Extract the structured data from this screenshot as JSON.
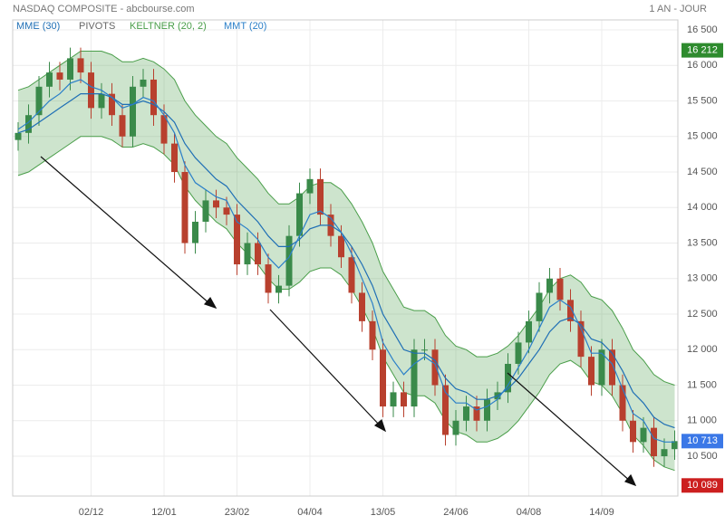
{
  "chart_data": {
    "type": "candlestick",
    "title": "NASDAQ COMPOSITE - abcbourse.com",
    "period": "1 AN - JOUR",
    "pivots_label": "PIVOTS",
    "grid": true,
    "ylim": [
      9940,
      16640
    ],
    "yticks": [
      {
        "value": 10500,
        "label": "10 500"
      },
      {
        "value": 11000,
        "label": "11 000"
      },
      {
        "value": 11500,
        "label": "11 500"
      },
      {
        "value": 12000,
        "label": "12 000"
      },
      {
        "value": 12500,
        "label": "12 500"
      },
      {
        "value": 13000,
        "label": "13 000"
      },
      {
        "value": 13500,
        "label": "13 500"
      },
      {
        "value": 14000,
        "label": "14 000"
      },
      {
        "value": 14500,
        "label": "14 500"
      },
      {
        "value": 15000,
        "label": "15 000"
      },
      {
        "value": 15500,
        "label": "15 500"
      },
      {
        "value": 16000,
        "label": "16 000"
      },
      {
        "value": 16500,
        "label": "16 500"
      }
    ],
    "badges": [
      {
        "value": 16212,
        "label": "16 212",
        "color": "#2e8b2e"
      },
      {
        "value": 10713,
        "label": "10 713",
        "color": "#3b78e7"
      },
      {
        "value": 10089,
        "label": "10 089",
        "color": "#cc1f1f"
      }
    ],
    "categories": [
      null,
      null,
      null,
      null,
      null,
      null,
      null,
      "02/12",
      null,
      null,
      null,
      null,
      null,
      null,
      "12/01",
      null,
      null,
      null,
      null,
      null,
      null,
      "23/02",
      null,
      null,
      null,
      null,
      null,
      null,
      "04/04",
      null,
      null,
      null,
      null,
      null,
      null,
      "13/05",
      null,
      null,
      null,
      null,
      null,
      null,
      "24/06",
      null,
      null,
      null,
      null,
      null,
      null,
      "04/08",
      null,
      null,
      null,
      null,
      null,
      null,
      "14/09",
      null,
      null,
      null,
      null,
      null,
      null,
      null
    ],
    "up_color": "#3a8a4a",
    "down_color": "#b8402e",
    "open": [
      14950,
      15050,
      15300,
      15700,
      15900,
      15800,
      16100,
      15900,
      15400,
      15600,
      15300,
      15000,
      15700,
      15800,
      15300,
      14900,
      14500,
      13500,
      13800,
      14100,
      14000,
      13900,
      13200,
      13500,
      13200,
      12800,
      12900,
      13600,
      14200,
      14400,
      13900,
      13600,
      13300,
      12800,
      12400,
      12000,
      11200,
      11400,
      11200,
      12000,
      12000,
      11500,
      10800,
      11000,
      11200,
      11000,
      11300,
      11400,
      11800,
      12100,
      12400,
      12800,
      13000,
      12700,
      12400,
      11900,
      11500,
      12000,
      11500,
      11000,
      10700,
      10900,
      10500,
      10600
    ],
    "high": [
      15200,
      15450,
      15850,
      16050,
      16050,
      16250,
      16250,
      16050,
      15750,
      15750,
      15450,
      15850,
      15950,
      15950,
      15450,
      15050,
      14650,
      13950,
      14250,
      14250,
      14150,
      14050,
      13650,
      13650,
      13350,
      13050,
      13750,
      14350,
      14550,
      14550,
      14050,
      13750,
      13450,
      12950,
      12550,
      12150,
      11550,
      11550,
      12150,
      12150,
      12150,
      11650,
      11150,
      11350,
      11350,
      11450,
      11550,
      11950,
      12250,
      12550,
      12950,
      13150,
      13150,
      12850,
      12550,
      12050,
      12150,
      12150,
      11650,
      11150,
      11050,
      11050,
      10750,
      10863
    ],
    "low": [
      14800,
      14900,
      15150,
      15550,
      15650,
      15650,
      15750,
      15250,
      15250,
      15150,
      14850,
      14850,
      15550,
      15150,
      14750,
      14350,
      13350,
      13350,
      13650,
      13850,
      13750,
      13050,
      13050,
      13050,
      12650,
      12650,
      12750,
      13450,
      14050,
      13750,
      13450,
      13150,
      12650,
      12250,
      11850,
      11050,
      11050,
      11050,
      11050,
      11850,
      11350,
      10650,
      10650,
      10850,
      10850,
      10850,
      11150,
      11250,
      11650,
      11950,
      12250,
      12650,
      12550,
      12250,
      11750,
      11350,
      11350,
      11350,
      10850,
      10550,
      10550,
      10350,
      10350,
      10450
    ],
    "close": [
      15050,
      15300,
      15700,
      15900,
      15800,
      16100,
      15900,
      15400,
      15600,
      15300,
      15000,
      15700,
      15800,
      15300,
      14900,
      14500,
      13500,
      13800,
      14100,
      14000,
      13900,
      13200,
      13500,
      13200,
      12800,
      12900,
      13600,
      14200,
      14400,
      13900,
      13600,
      13300,
      12800,
      12400,
      12000,
      11200,
      11400,
      11200,
      12000,
      12000,
      11500,
      10800,
      11000,
      11200,
      11000,
      11300,
      11400,
      11800,
      12100,
      12400,
      12800,
      13000,
      12700,
      12400,
      11900,
      11500,
      12000,
      11500,
      11000,
      10700,
      10900,
      10500,
      10600,
      10713
    ],
    "keltner": {
      "name": "KELTNER (20, 2)",
      "color": "#4a9e4a",
      "upper": [
        15650,
        15700,
        15800,
        15900,
        16000,
        16100,
        16200,
        16200,
        16200,
        16150,
        16050,
        16050,
        16100,
        16050,
        15950,
        15800,
        15500,
        15300,
        15150,
        15000,
        14900,
        14700,
        14550,
        14400,
        14200,
        14050,
        14050,
        14150,
        14300,
        14350,
        14350,
        14250,
        14050,
        13800,
        13500,
        13100,
        12850,
        12600,
        12550,
        12550,
        12450,
        12200,
        12050,
        12000,
        11900,
        11900,
        11950,
        12050,
        12200,
        12400,
        12600,
        12850,
        13000,
        13050,
        12950,
        12750,
        12700,
        12550,
        12300,
        12000,
        11850,
        11650,
        11550,
        11500
      ],
      "lower": [
        14450,
        14500,
        14600,
        14700,
        14800,
        14900,
        15000,
        15000,
        15000,
        14950,
        14850,
        14850,
        14900,
        14850,
        14750,
        14600,
        14300,
        14100,
        13950,
        13800,
        13700,
        13500,
        13350,
        13200,
        13000,
        12850,
        12850,
        12950,
        13100,
        13150,
        13150,
        13050,
        12850,
        12600,
        12300,
        11900,
        11650,
        11400,
        11350,
        11350,
        11250,
        11000,
        10850,
        10800,
        10700,
        10700,
        10750,
        10850,
        11000,
        11200,
        11400,
        11650,
        11800,
        11850,
        11750,
        11550,
        11500,
        11350,
        11100,
        10800,
        10650,
        10450,
        10350,
        10300
      ]
    },
    "series": [
      {
        "name": "MME (30)",
        "color": "#1f6fb5",
        "values": [
          15050,
          15100,
          15200,
          15300,
          15400,
          15500,
          15600,
          15600,
          15600,
          15550,
          15450,
          15450,
          15500,
          15450,
          15350,
          15200,
          14900,
          14700,
          14550,
          14400,
          14300,
          14100,
          13950,
          13800,
          13600,
          13450,
          13450,
          13550,
          13700,
          13750,
          13750,
          13650,
          13450,
          13200,
          12900,
          12500,
          12250,
          12000,
          11950,
          11950,
          11850,
          11600,
          11450,
          11400,
          11300,
          11300,
          11350,
          11450,
          11600,
          11800,
          12000,
          12250,
          12400,
          12450,
          12350,
          12150,
          12100,
          11950,
          11700,
          11400,
          11250,
          11050,
          10950,
          10900
        ]
      },
      {
        "name": "MMT (20)",
        "color": "#2a7fc8",
        "values": [
          15100,
          15200,
          15350,
          15500,
          15600,
          15750,
          15800,
          15700,
          15650,
          15550,
          15400,
          15450,
          15550,
          15500,
          15300,
          15050,
          14600,
          14350,
          14250,
          14150,
          14100,
          13800,
          13700,
          13550,
          13300,
          13150,
          13300,
          13600,
          13900,
          13950,
          13850,
          13650,
          13350,
          13000,
          12650,
          12100,
          11850,
          11650,
          11800,
          11900,
          11800,
          11400,
          11250,
          11250,
          11150,
          11200,
          11300,
          11500,
          11750,
          12000,
          12300,
          12600,
          12700,
          12600,
          12300,
          11950,
          11950,
          11800,
          11450,
          11100,
          11000,
          10750,
          10700,
          10700
        ]
      }
    ]
  }
}
